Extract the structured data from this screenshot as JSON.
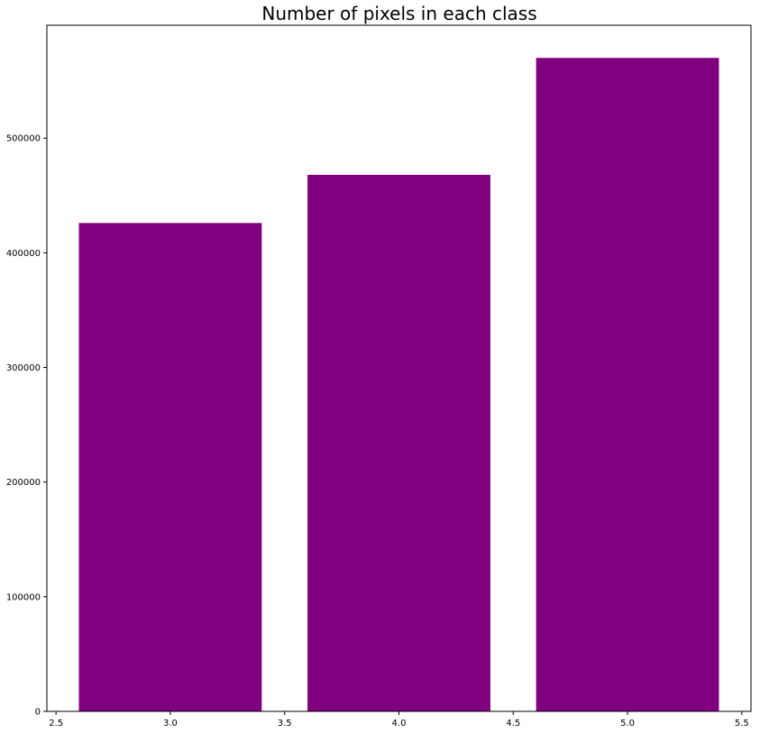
{
  "chart_data": {
    "type": "bar",
    "title": "Number of pixels in each class",
    "xlabel": "",
    "ylabel": "",
    "categories": [
      3.0,
      4.0,
      5.0
    ],
    "values": [
      426000,
      468000,
      570000
    ],
    "bar_width": 0.8,
    "xlim": [
      2.46,
      5.54
    ],
    "ylim": [
      0,
      598500
    ],
    "x_ticks": [
      2.5,
      3.0,
      3.5,
      4.0,
      4.5,
      5.0,
      5.5
    ],
    "x_tick_labels": [
      "2.5",
      "3.0",
      "3.5",
      "4.0",
      "4.5",
      "5.0",
      "5.5"
    ],
    "y_ticks": [
      0,
      100000,
      200000,
      300000,
      400000,
      500000
    ],
    "y_tick_labels": [
      "0",
      "100000",
      "200000",
      "300000",
      "400000",
      "500000"
    ],
    "bar_color": "#800080",
    "grid": false,
    "legend": "none"
  }
}
